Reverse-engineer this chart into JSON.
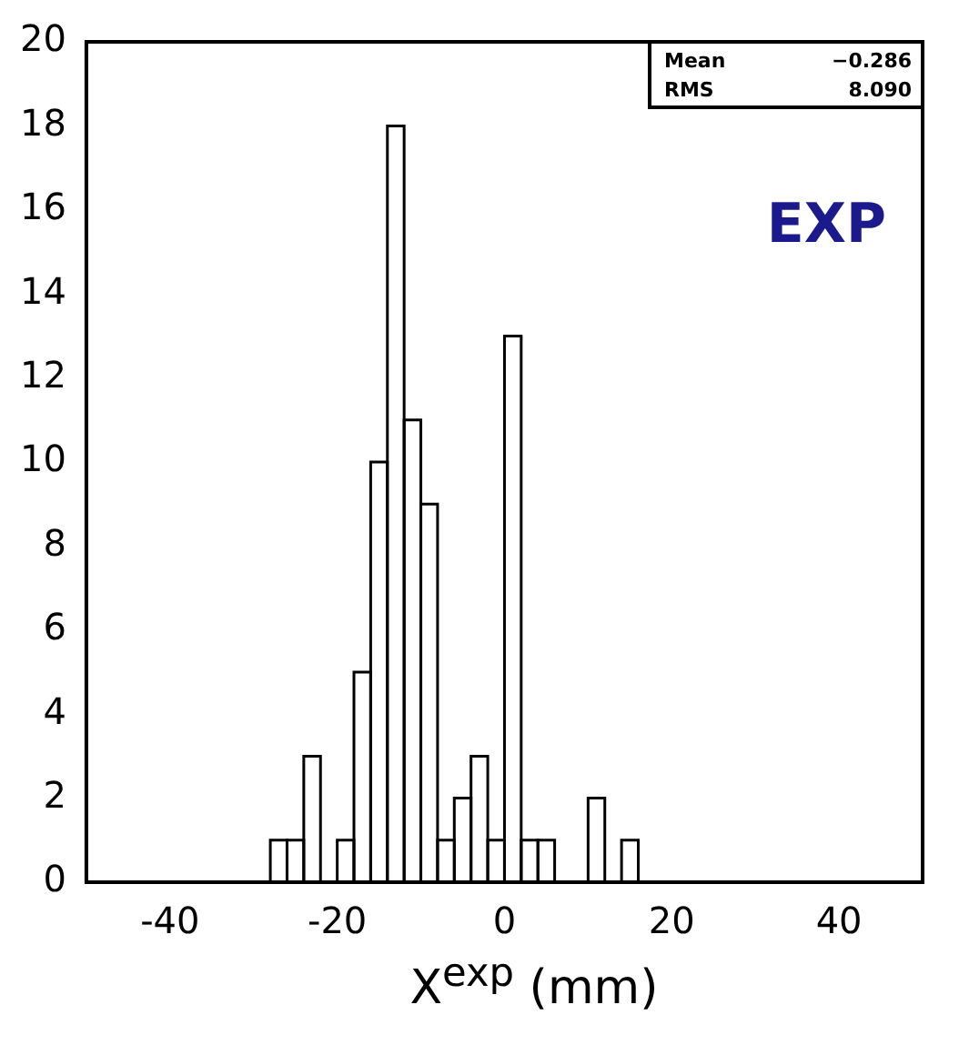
{
  "chart_data": {
    "type": "histogram",
    "xlabel": "X$^{exp}$ (mm)",
    "annotations": [
      "EXP",
      "Mean",
      "−0.286",
      "RMS",
      "8.090"
    ],
    "bins": [
      -28,
      -26,
      -24,
      -22,
      -20,
      -18,
      -16,
      -14,
      -12,
      -10,
      -8,
      -6,
      -4,
      -2,
      0,
      2,
      4,
      6,
      8,
      10,
      12,
      14,
      16
    ],
    "values": [
      1,
      1,
      3,
      0,
      1,
      5,
      10,
      18,
      11,
      9,
      1,
      2,
      3,
      1,
      13,
      1,
      1,
      0,
      0,
      2,
      0,
      1
    ],
    "color": "#ffffff",
    "xlim": [
      -50,
      50
    ],
    "xticks": [
      -40,
      -20,
      0,
      20,
      40
    ],
    "ylim": [
      0,
      20
    ],
    "yticks": [
      0,
      2,
      4,
      6,
      8,
      10,
      12,
      14,
      16,
      18,
      20
    ],
    "grid": false,
    "legend": false
  }
}
